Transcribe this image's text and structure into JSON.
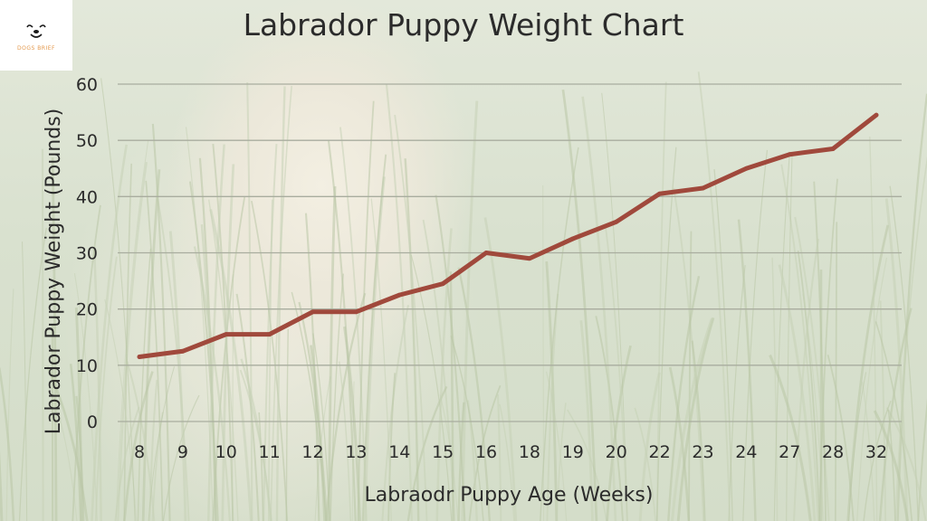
{
  "logo": {
    "text": "DOGS BRIEF",
    "icon": "dog-face-icon"
  },
  "chart_data": {
    "type": "line",
    "title": "Labrador Puppy Weight Chart",
    "xlabel": "Labraodr Puppy Age (Weeks)",
    "ylabel": "Labrador Puppy Weight (Pounds)",
    "categories": [
      "8",
      "9",
      "10",
      "11",
      "12",
      "13",
      "14",
      "15",
      "16",
      "18",
      "19",
      "20",
      "22",
      "23",
      "24",
      "27",
      "28",
      "32"
    ],
    "values": [
      11.5,
      12.5,
      15.5,
      15.5,
      19.5,
      19.5,
      22.5,
      24.5,
      30,
      29,
      32.5,
      35.5,
      40.5,
      41.5,
      45,
      47.5,
      48.5,
      54.5
    ],
    "ylim": [
      0,
      60
    ],
    "yticks": [
      0,
      10,
      20,
      30,
      40,
      50,
      60
    ],
    "grid": true,
    "line_color": "#a0493c"
  }
}
